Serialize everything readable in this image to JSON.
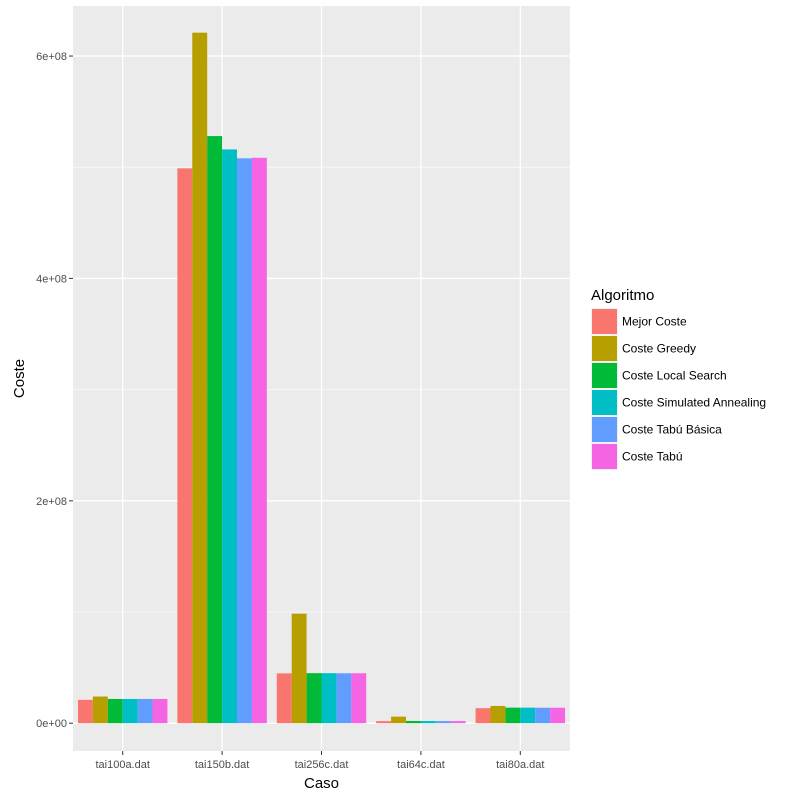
{
  "chart_data": {
    "type": "bar",
    "title": "",
    "xlabel": "Caso",
    "ylabel": "Coste",
    "categories": [
      "tai100a.dat",
      "tai150b.dat",
      "tai256c.dat",
      "tai64c.dat",
      "tai80a.dat"
    ],
    "y_ticks": [
      {
        "value": 0,
        "label": "0e+00"
      },
      {
        "value": 200000000,
        "label": "2e+08"
      },
      {
        "value": 400000000,
        "label": "4e+08"
      },
      {
        "value": 600000000,
        "label": "6e+08"
      }
    ],
    "ylim": [
      -25000000,
      645000000
    ],
    "grid": true,
    "legend": {
      "title": "Algoritmo",
      "position": "right"
    },
    "series": [
      {
        "name": "Mejor Coste",
        "color": "#F8766D",
        "values": [
          21000000,
          499000000,
          44800000,
          1860000,
          13500000
        ]
      },
      {
        "name": "Coste Greedy",
        "color": "#B79F00",
        "values": [
          24000000,
          621000000,
          98500000,
          5900000,
          15500000
        ]
      },
      {
        "name": "Coste Local Search",
        "color": "#00BA38",
        "values": [
          21800000,
          528000000,
          45000000,
          2000000,
          14000000
        ]
      },
      {
        "name": "Coste Simulated Annealing",
        "color": "#00BFC4",
        "values": [
          21800000,
          516000000,
          45000000,
          2000000,
          14000000
        ]
      },
      {
        "name": "Coste Tabú Básica",
        "color": "#619CFF",
        "values": [
          21800000,
          508000000,
          44900000,
          1900000,
          13900000
        ]
      },
      {
        "name": "Coste Tabú",
        "color": "#F564E3",
        "values": [
          21800000,
          508500000,
          44900000,
          1900000,
          13900000
        ]
      }
    ]
  }
}
